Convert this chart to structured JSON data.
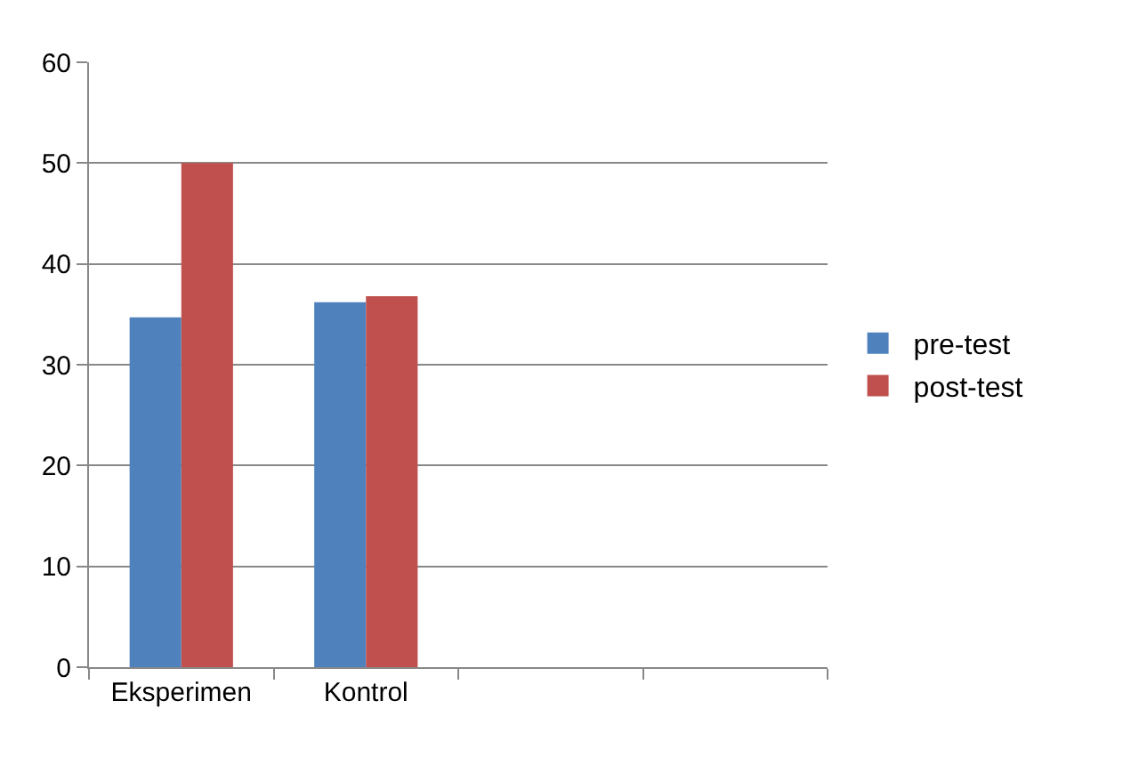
{
  "chart_data": {
    "type": "bar",
    "categories": [
      "Eksperimen",
      "Kontrol",
      null,
      null
    ],
    "series": [
      {
        "name": "pre-test",
        "color": "#4f81bd",
        "values": [
          34.7,
          36.2,
          null,
          null
        ]
      },
      {
        "name": "post-test",
        "color": "#c0504d",
        "values": [
          50,
          36.8,
          null,
          null
        ]
      }
    ],
    "ylim": [
      0,
      60
    ],
    "yticks": [
      0,
      10,
      20,
      30,
      40,
      50,
      60
    ],
    "grid": "y",
    "legend": "right"
  }
}
